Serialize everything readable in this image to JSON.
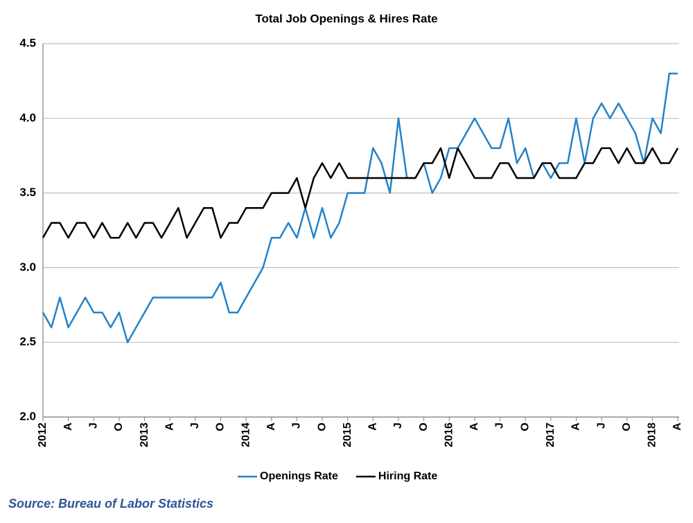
{
  "chart_data": {
    "type": "line",
    "title": "Total Job Openings & Hires Rate",
    "source": "Source: Bureau of Labor Statistics",
    "categories": [
      "2012",
      null,
      null,
      "A",
      null,
      null,
      "J",
      null,
      null,
      "O",
      null,
      null,
      "2013",
      null,
      null,
      "A",
      null,
      null,
      "J",
      null,
      null,
      "O",
      null,
      null,
      "2014",
      null,
      null,
      "A",
      null,
      null,
      "J",
      null,
      null,
      "O",
      null,
      null,
      "2015",
      null,
      null,
      "A",
      null,
      null,
      "J",
      null,
      null,
      "O",
      null,
      null,
      "2016",
      null,
      null,
      "A",
      null,
      null,
      "J",
      null,
      null,
      "O",
      null,
      null,
      "2017",
      null,
      null,
      "A",
      null,
      null,
      "J",
      null,
      null,
      "O",
      null,
      null,
      "2018",
      null,
      null,
      "A"
    ],
    "series": [
      {
        "name": "Openings Rate",
        "color": "#2382c8",
        "values": [
          2.7,
          2.6,
          2.8,
          2.6,
          2.7,
          2.8,
          2.7,
          2.7,
          2.6,
          2.7,
          2.5,
          2.6,
          2.7,
          2.8,
          2.8,
          2.8,
          2.8,
          2.8,
          2.8,
          2.8,
          2.8,
          2.9,
          2.7,
          2.7,
          2.8,
          2.9,
          3.0,
          3.2,
          3.2,
          3.3,
          3.2,
          3.4,
          3.2,
          3.4,
          3.2,
          3.3,
          3.5,
          3.5,
          3.5,
          3.8,
          3.7,
          3.5,
          4.0,
          3.6,
          3.6,
          3.7,
          3.5,
          3.6,
          3.8,
          3.8,
          3.9,
          4.0,
          3.9,
          3.8,
          3.8,
          4.0,
          3.7,
          3.8,
          3.6,
          3.7,
          3.6,
          3.7,
          3.7,
          4.0,
          3.7,
          4.0,
          4.1,
          4.0,
          4.1,
          4.0,
          3.9,
          3.7,
          4.0,
          3.9,
          4.3,
          4.3
        ]
      },
      {
        "name": "Hiring Rate",
        "color": "#000000",
        "values": [
          3.2,
          3.3,
          3.3,
          3.2,
          3.3,
          3.3,
          3.2,
          3.3,
          3.2,
          3.2,
          3.3,
          3.2,
          3.3,
          3.3,
          3.2,
          3.3,
          3.4,
          3.2,
          3.3,
          3.4,
          3.4,
          3.2,
          3.3,
          3.3,
          3.4,
          3.4,
          3.4,
          3.5,
          3.5,
          3.5,
          3.6,
          3.4,
          3.6,
          3.7,
          3.6,
          3.7,
          3.6,
          3.6,
          3.6,
          3.6,
          3.6,
          3.6,
          3.6,
          3.6,
          3.6,
          3.7,
          3.7,
          3.8,
          3.6,
          3.8,
          3.7,
          3.6,
          3.6,
          3.6,
          3.7,
          3.7,
          3.6,
          3.6,
          3.6,
          3.7,
          3.7,
          3.6,
          3.6,
          3.6,
          3.7,
          3.7,
          3.8,
          3.8,
          3.7,
          3.8,
          3.7,
          3.7,
          3.8,
          3.7,
          3.7,
          3.8
        ]
      }
    ],
    "ylim": [
      2.0,
      4.5
    ],
    "yticks": [
      {
        "value": 2.0,
        "label": "2.0"
      },
      2.5,
      {
        "value": 3.0,
        "label": "3.0"
      },
      3.5,
      {
        "value": 4.0,
        "label": "4.0"
      },
      4.5
    ],
    "grid": true,
    "legend": "bottom"
  }
}
